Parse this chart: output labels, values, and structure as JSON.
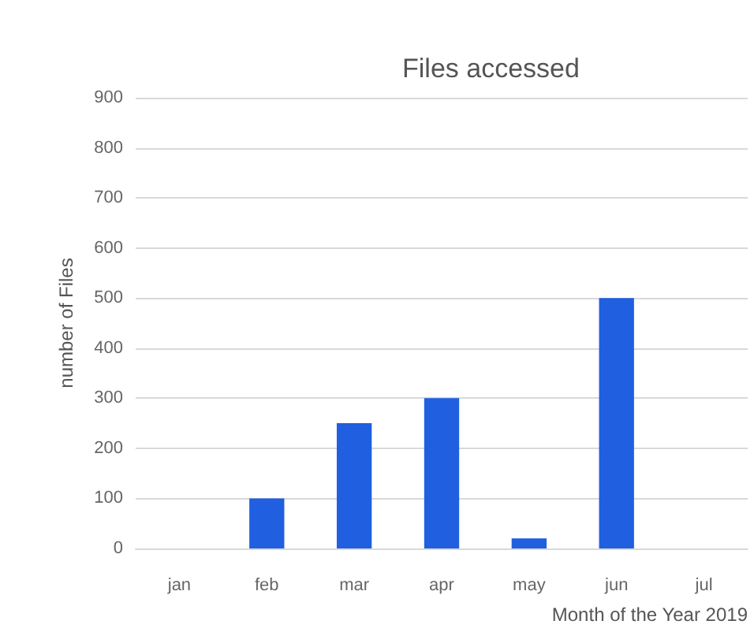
{
  "chart_data": {
    "type": "bar",
    "title": "Files accessed",
    "xlabel": "Month of the Year 2019",
    "ylabel": "number of Files",
    "categories": [
      "jan",
      "feb",
      "mar",
      "apr",
      "may",
      "jun",
      "jul"
    ],
    "values": [
      0,
      100,
      250,
      300,
      20,
      500,
      0
    ],
    "color": "#1f5fe0",
    "ylim": [
      0,
      900
    ],
    "yticks": [
      0,
      100,
      200,
      300,
      400,
      500,
      600,
      700,
      800,
      900
    ],
    "grid": "y"
  }
}
